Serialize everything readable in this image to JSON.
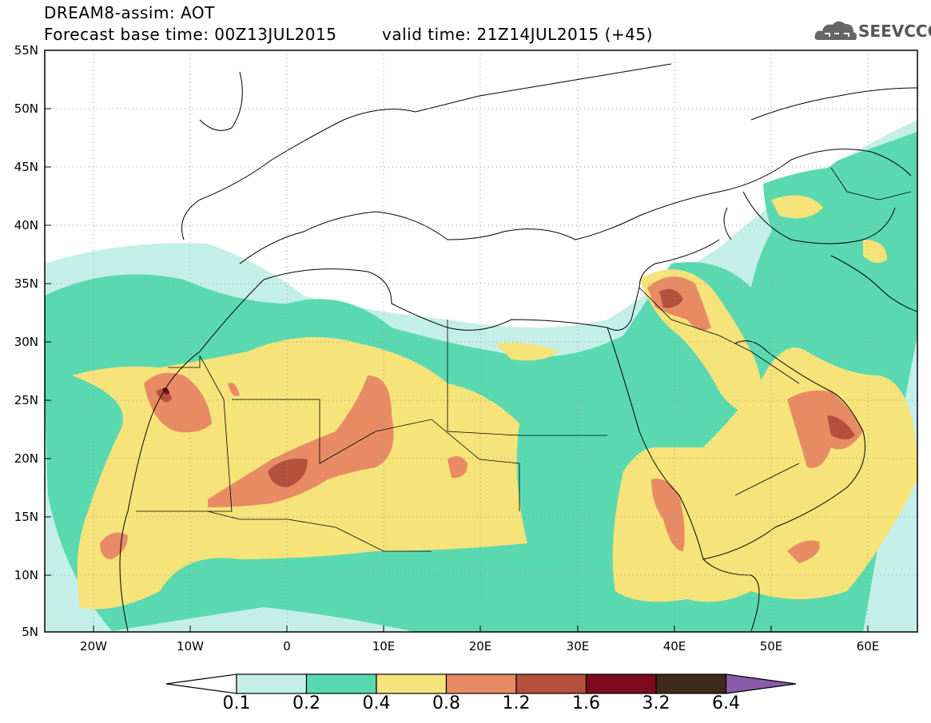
{
  "header": {
    "model_line": "DREAM8-assim: AOT",
    "base_time_line": "Forecast base time: 00Z13JUL2015",
    "valid_time_line": "valid time: 21Z14JUL2015 (+45)",
    "logo_text": "SEEVCCC"
  },
  "map": {
    "lat_labels": [
      "55N",
      "50N",
      "45N",
      "40N",
      "35N",
      "30N",
      "25N",
      "20N",
      "15N",
      "10N",
      "5N"
    ],
    "lon_labels": [
      "20W",
      "10W",
      "0",
      "10E",
      "20E",
      "30E",
      "40E",
      "50E",
      "60E"
    ],
    "lat_range": [
      5,
      55
    ],
    "lon_range": [
      -25,
      65
    ],
    "grid": "dotted"
  },
  "legend": {
    "levels": [
      "0.1",
      "0.2",
      "0.4",
      "0.8",
      "1.2",
      "1.6",
      "3.2",
      "6.4"
    ],
    "colors": [
      "#ffffff",
      "#c4efe9",
      "#5ad9b0",
      "#f6e37a",
      "#e88b64",
      "#b5503d",
      "#7d0a1f",
      "#3e2a1a",
      "#8a5aa8"
    ]
  },
  "colors": {
    "c01": "#c4efe9",
    "c02": "#5ad9b0",
    "c04": "#f6e37a",
    "c08": "#e88b64",
    "c12": "#b5503d",
    "c16": "#7d0a1f"
  }
}
